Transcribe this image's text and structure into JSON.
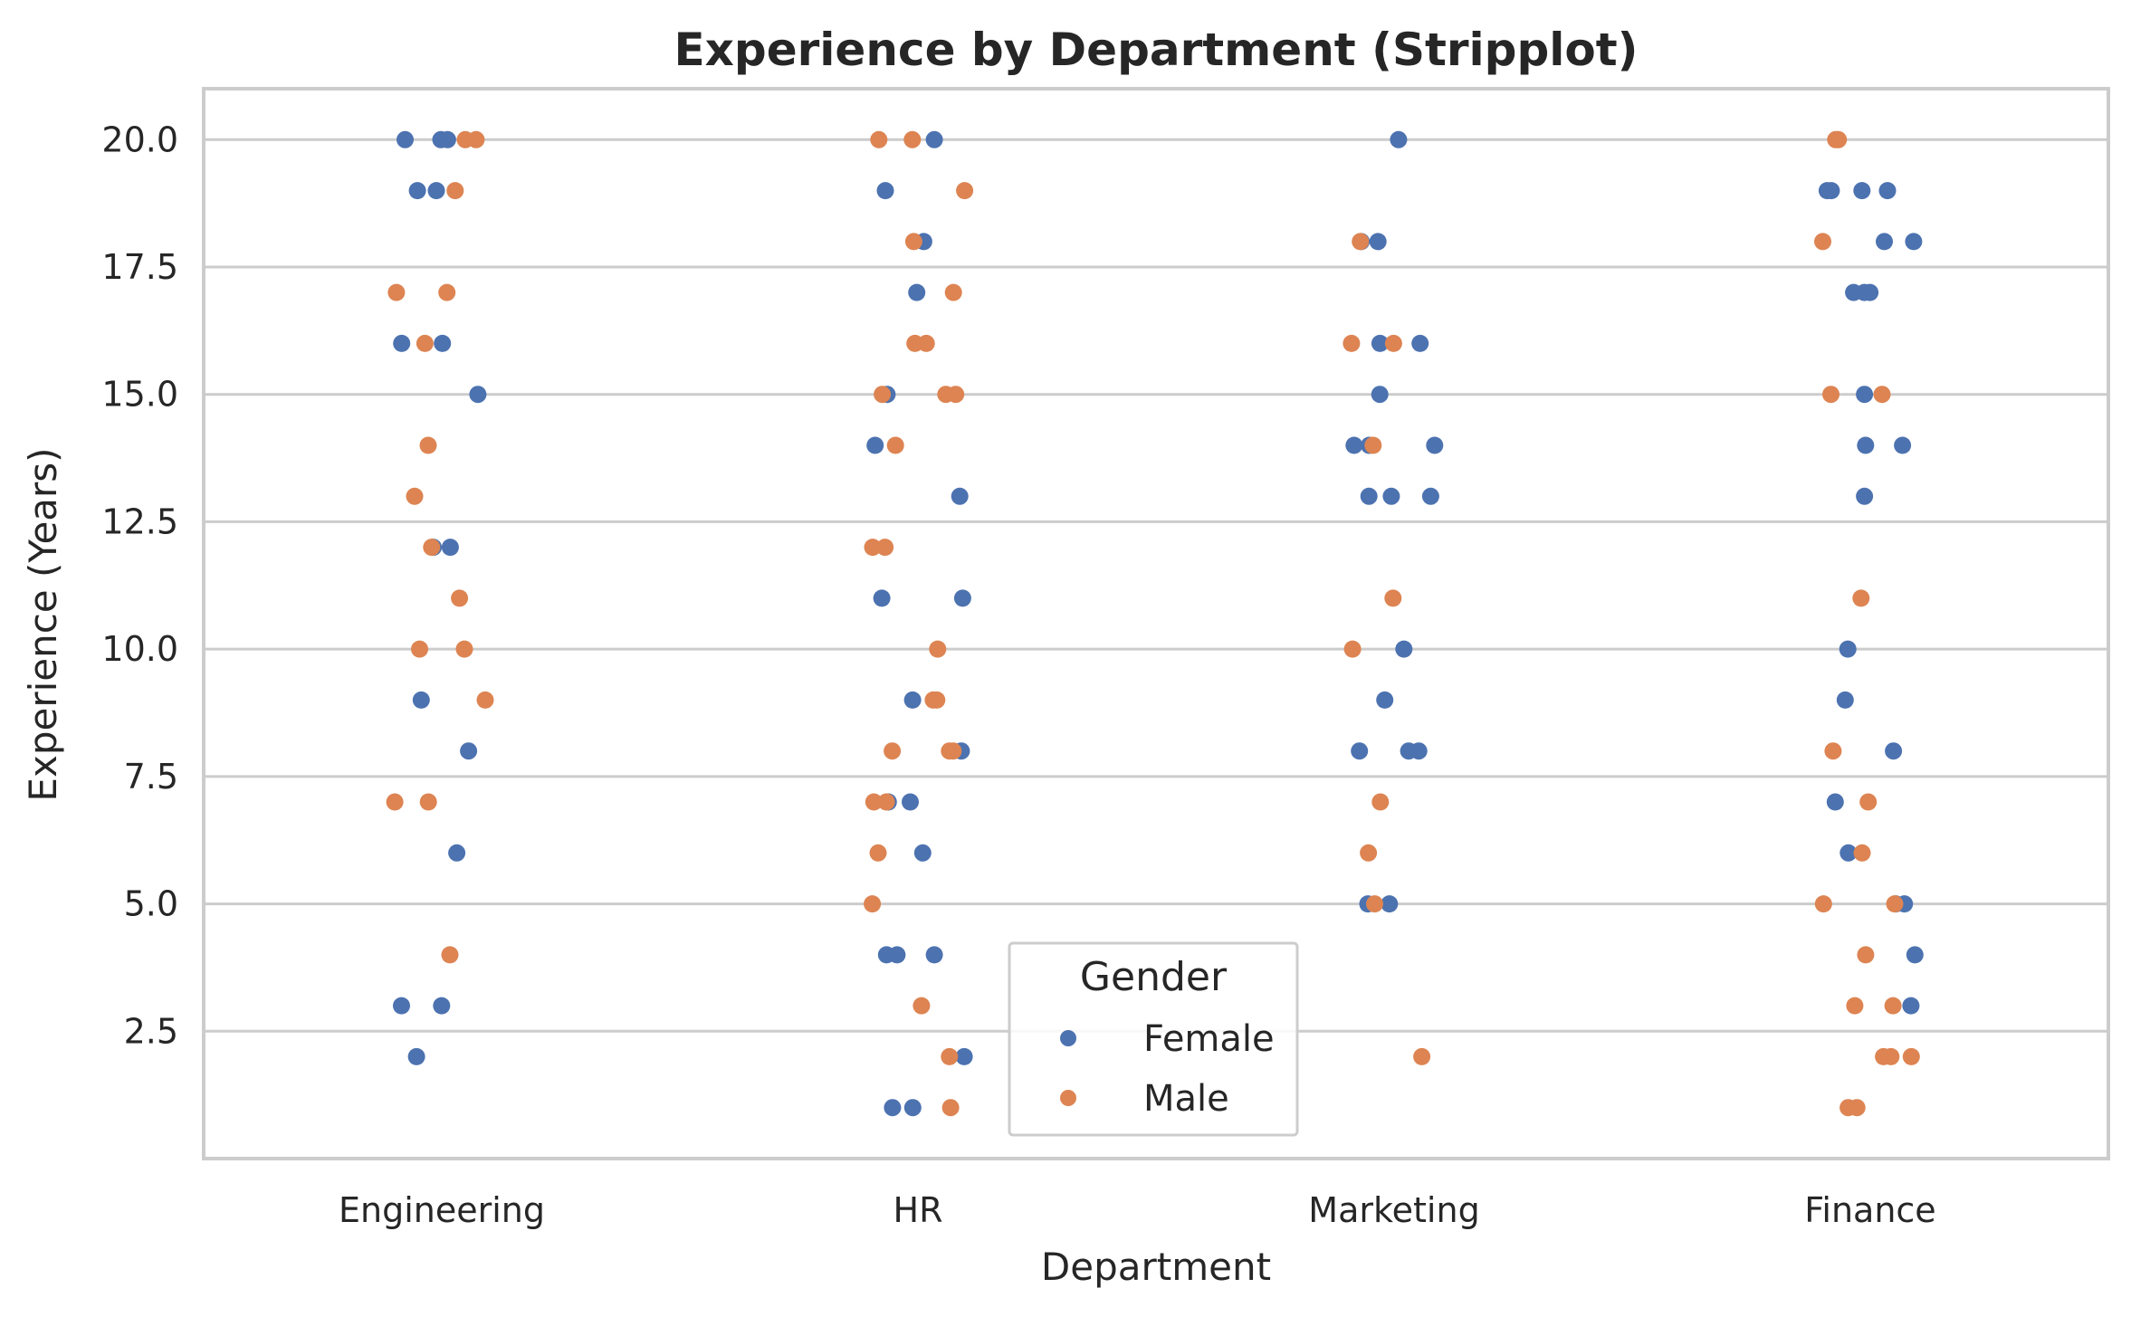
{
  "chart_data": {
    "type": "scatter",
    "title": "Experience by Department (Stripplot)",
    "xlabel": "Department",
    "ylabel": "Experience (Years)",
    "categories": [
      "Engineering",
      "HR",
      "Marketing",
      "Finance"
    ],
    "ylim": [
      0.0,
      21.0
    ],
    "yticks": [
      "2.5",
      "5.0",
      "7.5",
      "10.0",
      "12.5",
      "15.0",
      "17.5",
      "20.0"
    ],
    "grid": "horizontal",
    "legend": {
      "title": "Gender",
      "position": "bottom-center"
    },
    "colors": {
      "Female": "#4c72b0",
      "Male": "#dd8452",
      "grid": "#cccccc",
      "frame": "#cccccc"
    },
    "series": [
      {
        "name": "Female",
        "points": [
          {
            "category": "Engineering",
            "values": [
              20,
              20,
              20,
              19,
              19,
              16,
              16,
              15,
              12,
              12,
              9,
              8,
              6,
              3,
              3,
              2
            ]
          },
          {
            "category": "HR",
            "values": [
              20,
              19,
              18,
              17,
              15,
              14,
              13,
              11,
              11,
              9,
              8,
              7,
              7,
              6,
              4,
              4,
              4,
              2,
              1,
              1
            ]
          },
          {
            "category": "Marketing",
            "values": [
              20,
              18,
              18,
              16,
              16,
              15,
              14,
              14,
              14,
              13,
              13,
              13,
              10,
              9,
              8,
              8,
              8,
              5,
              5
            ]
          },
          {
            "category": "Finance",
            "values": [
              19,
              19,
              19,
              19,
              18,
              18,
              17,
              17,
              17,
              15,
              14,
              14,
              13,
              10,
              9,
              8,
              7,
              6,
              5,
              5,
              4,
              3
            ]
          }
        ]
      },
      {
        "name": "Male",
        "points": [
          {
            "category": "Engineering",
            "values": [
              20,
              20,
              19,
              17,
              17,
              16,
              14,
              13,
              12,
              11,
              10,
              10,
              9,
              7,
              7,
              4
            ]
          },
          {
            "category": "HR",
            "values": [
              20,
              20,
              19,
              18,
              17,
              16,
              16,
              15,
              15,
              15,
              14,
              12,
              12,
              10,
              9,
              9,
              8,
              8,
              8,
              7,
              7,
              6,
              5,
              3,
              2,
              1
            ]
          },
          {
            "category": "Marketing",
            "values": [
              18,
              16,
              16,
              14,
              11,
              10,
              7,
              6,
              5,
              2
            ]
          },
          {
            "category": "Finance",
            "values": [
              20,
              20,
              18,
              15,
              15,
              11,
              8,
              7,
              6,
              5,
              5,
              4,
              3,
              3,
              2,
              2,
              2,
              1,
              1
            ]
          }
        ]
      }
    ]
  }
}
